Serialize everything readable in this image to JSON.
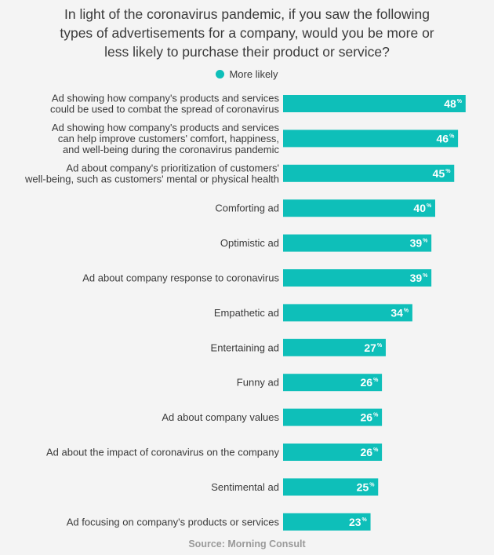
{
  "chart_data": {
    "type": "bar",
    "orientation": "horizontal",
    "title_lines": [
      "In light of the coronavirus pandemic, if you saw the following",
      "types of advertisements for a company, would you be more or",
      "less likely to purchase their product or service?"
    ],
    "categories": [
      [
        "Ad showing how company's products and services",
        "could be used to combat the spread of coronavirus"
      ],
      [
        "Ad showing how company's products and services",
        "can help improve customers' comfort, happiness,",
        "and well-being during the coronavirus pandemic"
      ],
      [
        "Ad about company's prioritization of customers'",
        "well-being, such as customers' mental or physical health"
      ],
      [
        "Comforting ad"
      ],
      [
        "Optimistic ad"
      ],
      [
        "Ad about company response to coronavirus"
      ],
      [
        "Empathetic ad"
      ],
      [
        "Entertaining ad"
      ],
      [
        "Funny ad"
      ],
      [
        "Ad about company values"
      ],
      [
        "Ad about the impact of coronavirus on the company"
      ],
      [
        "Sentimental ad"
      ],
      [
        "Ad focusing on company's products or services"
      ]
    ],
    "series": [
      {
        "name": "More likely",
        "values": [
          48,
          46,
          45,
          40,
          39,
          39,
          34,
          27,
          26,
          26,
          26,
          25,
          23
        ]
      }
    ],
    "value_suffix": "%",
    "legend_position": "top-center",
    "grid": false
  },
  "colors": {
    "bar": "#0ebfb9",
    "text": "#3a3a3a",
    "source": "#9a9a9a",
    "background": "#f4f4f4"
  },
  "source": "Source: Morning Consult"
}
